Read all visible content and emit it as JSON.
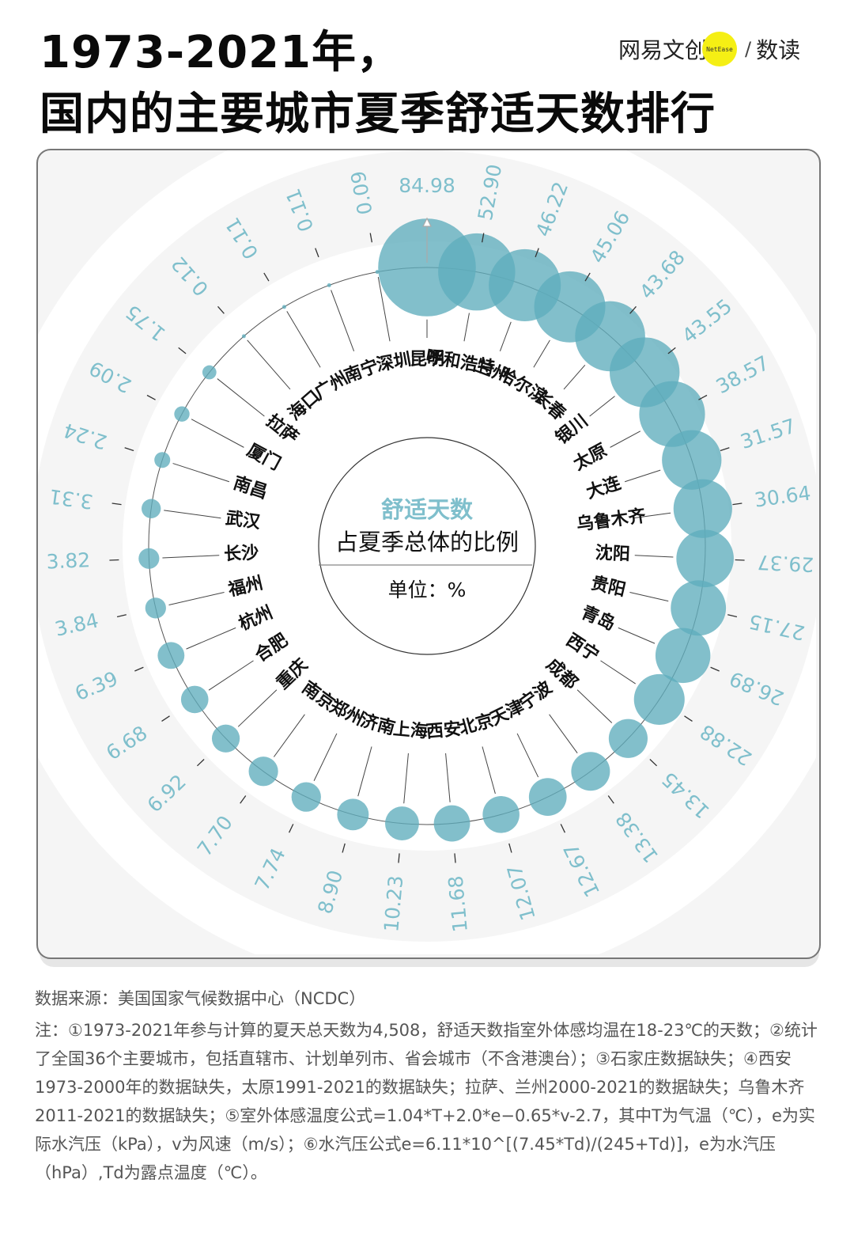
{
  "header": {
    "title_line1": "1973-2021年，",
    "title_line2": "国内的主要城市夏季舒适天数排行",
    "logo_left": "网易文创",
    "logo_badge": "NetEase",
    "logo_slash": "/",
    "logo_right": "数读"
  },
  "center": {
    "line1": "舒适天数",
    "line2": "占夏季总体的比例",
    "unit": "单位：%"
  },
  "colors": {
    "bubble": "#5fadbc",
    "value_text": "#7fbfcc",
    "band": "#f5f5f5",
    "logo_yellow": "#f5ef14"
  },
  "chart_data": {
    "type": "bubble-radial",
    "title": "1973-2021年，国内的主要城市夏季舒适天数排行",
    "subtitle": "舒适天数占夏季总体的比例",
    "unit": "%",
    "order": "clockwise from top, descending",
    "categories": [
      "昆明",
      "呼和浩特",
      "兰州",
      "哈尔滨",
      "长春",
      "银川",
      "太原",
      "大连",
      "乌鲁木齐",
      "沈阳",
      "贵阳",
      "青岛",
      "西宁",
      "成都",
      "宁波",
      "天津",
      "北京",
      "西安",
      "上海",
      "济南",
      "郑州",
      "南京",
      "重庆",
      "合肥",
      "杭州",
      "福州",
      "长沙",
      "武汉",
      "南昌",
      "厦门",
      "拉萨",
      "海口",
      "广州",
      "南宁",
      "深圳"
    ],
    "values": [
      84.98,
      52.9,
      46.22,
      45.06,
      43.68,
      43.55,
      38.57,
      31.57,
      30.64,
      29.37,
      27.15,
      26.89,
      22.88,
      13.45,
      13.38,
      12.67,
      12.07,
      11.68,
      10.23,
      8.9,
      7.74,
      7.7,
      6.92,
      6.68,
      6.39,
      3.84,
      3.82,
      3.31,
      2.24,
      2.09,
      1.75,
      0.12,
      0.11,
      0.11,
      0.09
    ],
    "value_labels": [
      "84.98",
      "52.90",
      "46.22",
      "45.06",
      "43.68",
      "43.55",
      "38.57",
      "31.57",
      "30.64",
      "29.37",
      "27.15",
      "26.89",
      "22.88",
      "13.45",
      "13.38",
      "12.67",
      "12.07",
      "11.68",
      "10.23",
      "8.90",
      "7.74",
      "7.70",
      "6.92",
      "6.68",
      "6.39",
      "3.84",
      "3.82",
      "3.31",
      "2.24",
      "2.09",
      "1.75",
      "0.12",
      "0.11",
      "0.11",
      "0.09"
    ]
  },
  "footer": {
    "source": "数据来源：美国国家气候数据中心（NCDC）",
    "note": "注：①1973-2021年参与计算的夏天总天数为4,508，舒适天数指室外体感均温在18-23℃的天数；②统计了全国36个主要城市，包括直辖市、计划单列市、省会城市（不含港澳台）；③石家庄数据缺失；④西安1973-2000年的数据缺失，太原1991-2021的数据缺失；拉萨、兰州2000-2021的数据缺失；乌鲁木齐2011-2021的数据缺失；⑤室外体感温度公式=1.04*T+2.0*e−0.65*v-2.7，其中T为气温（℃），e为实际水汽压（kPa），v为风速（m/s）；⑥水汽压公式e=6.11*10^[(7.45*Td)/(245+Td)]，e为水汽压（hPa）,Td为露点温度（℃）。"
  }
}
